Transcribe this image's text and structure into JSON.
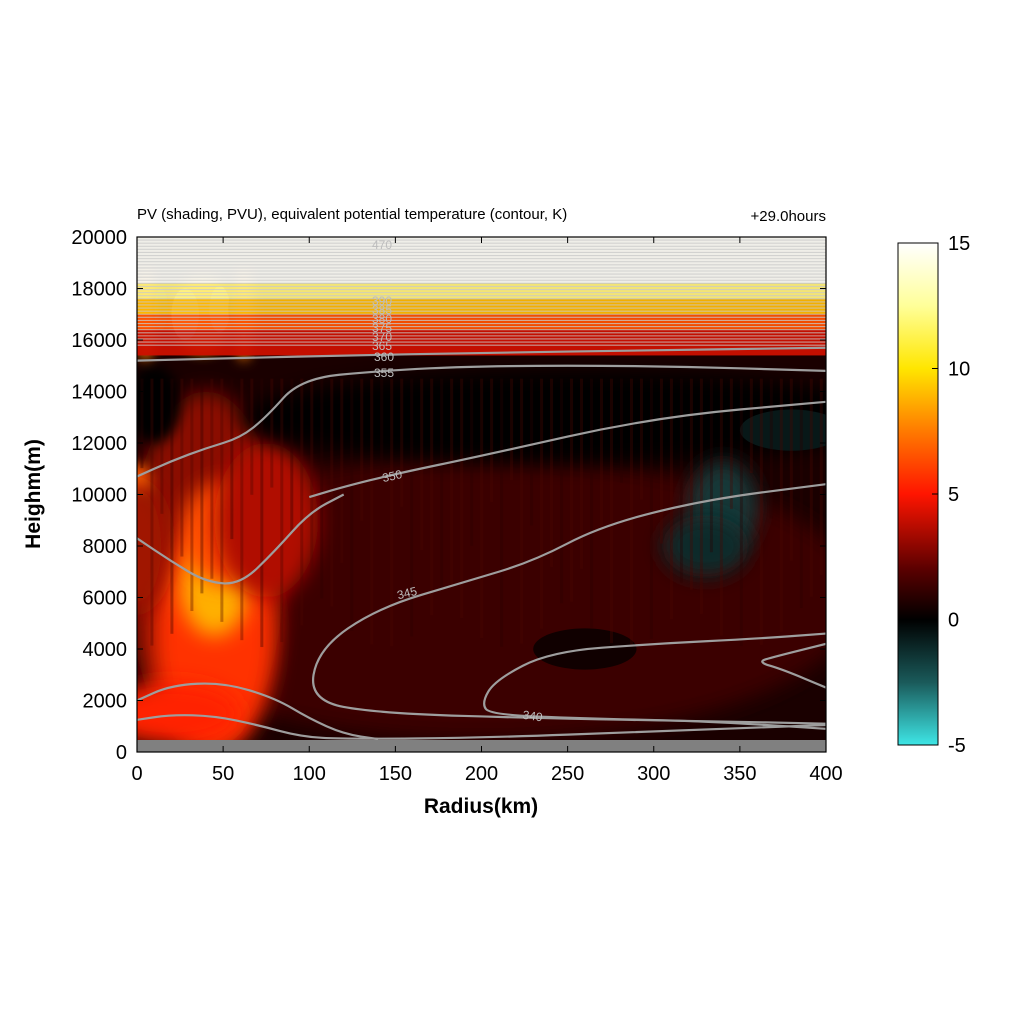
{
  "chart_data": {
    "type": "heatmap",
    "title": "PV (shading, PVU), equivalent potential temperature (contour, K)",
    "time_label": "+29.0hours",
    "xlabel": "Radius(km)",
    "ylabel": "Heighm(m)",
    "xlim": [
      0,
      400
    ],
    "ylim": [
      0,
      20000
    ],
    "x_ticks": [
      "0",
      "50",
      "100",
      "150",
      "200",
      "250",
      "300",
      "350",
      "400"
    ],
    "y_ticks": [
      "0",
      "2000",
      "4000",
      "6000",
      "8000",
      "10000",
      "12000",
      "14000",
      "16000",
      "18000",
      "20000"
    ],
    "colorbar": {
      "range": [
        -5,
        15
      ],
      "ticks": [
        "15",
        "10",
        "5",
        "0",
        "-5"
      ],
      "colors": [
        {
          "value": -5,
          "color": "#3ee6e6"
        },
        {
          "value": -2.5,
          "color": "#1a5a5a"
        },
        {
          "value": 0,
          "color": "#000000"
        },
        {
          "value": 2,
          "color": "#5a0000"
        },
        {
          "value": 5,
          "color": "#ff1500"
        },
        {
          "value": 7.5,
          "color": "#ff7a00"
        },
        {
          "value": 10,
          "color": "#ffe600"
        },
        {
          "value": 12.5,
          "color": "#ffff99"
        },
        {
          "value": 15,
          "color": "#ffffff"
        }
      ]
    },
    "contour_labels": [
      "340",
      "345",
      "350",
      "355",
      "360",
      "365",
      "370",
      "375",
      "380",
      "385",
      "390",
      "470"
    ],
    "contours": [
      {
        "level": 340,
        "points": [
          [
            0,
            1250
          ],
          [
            20,
            1450
          ],
          [
            45,
            1400
          ],
          [
            70,
            1050
          ],
          [
            95,
            600
          ],
          [
            120,
            500
          ],
          [
            200,
            550
          ],
          [
            300,
            800
          ],
          [
            400,
            1050
          ]
        ]
      },
      {
        "level": 340,
        "points": [
          [
            0,
            2000
          ],
          [
            20,
            2600
          ],
          [
            50,
            2700
          ],
          [
            80,
            2100
          ],
          [
            100,
            1300
          ],
          [
            120,
            700
          ],
          [
            140,
            500
          ]
        ]
      },
      {
        "level": 340,
        "points": [
          [
            400,
            900
          ],
          [
            330,
            1200
          ],
          [
            260,
            1300
          ],
          [
            205,
            1450
          ],
          [
            200,
            1900
          ],
          [
            208,
            2800
          ],
          [
            240,
            3900
          ],
          [
            300,
            4200
          ],
          [
            360,
            4400
          ],
          [
            400,
            4600
          ]
        ]
      },
      {
        "level": 340,
        "points": [
          [
            400,
            2500
          ],
          [
            375,
            3200
          ],
          [
            360,
            3500
          ],
          [
            370,
            3700
          ],
          [
            400,
            4200
          ]
        ]
      },
      {
        "level": 345,
        "points": [
          [
            0,
            8300
          ],
          [
            20,
            7400
          ],
          [
            40,
            6600
          ],
          [
            60,
            6500
          ],
          [
            80,
            7800
          ],
          [
            100,
            9300
          ],
          [
            120,
            10000
          ]
        ]
      },
      {
        "level": 345,
        "points": [
          [
            400,
            1100
          ],
          [
            330,
            1200
          ],
          [
            240,
            1300
          ],
          [
            140,
            1500
          ],
          [
            100,
            2000
          ],
          [
            105,
            4000
          ],
          [
            140,
            5600
          ],
          [
            190,
            6600
          ],
          [
            230,
            7400
          ],
          [
            270,
            8800
          ],
          [
            330,
            9800
          ],
          [
            400,
            10400
          ]
        ]
      },
      {
        "level": 350,
        "points": [
          [
            0,
            10700
          ],
          [
            20,
            11300
          ],
          [
            40,
            11800
          ],
          [
            60,
            12200
          ],
          [
            75,
            13000
          ],
          [
            95,
            14500
          ],
          [
            140,
            14800
          ],
          [
            200,
            15000
          ],
          [
            300,
            15000
          ],
          [
            400,
            14800
          ]
        ]
      },
      {
        "level": 350,
        "points": [
          [
            400,
            13600
          ],
          [
            300,
            13000
          ],
          [
            200,
            11500
          ],
          [
            150,
            10800
          ],
          [
            120,
            10300
          ],
          [
            100,
            9900
          ]
        ]
      },
      {
        "level": 355,
        "points": [
          [
            0,
            15200
          ],
          [
            60,
            15300
          ],
          [
            120,
            15400
          ],
          [
            200,
            15500
          ],
          [
            300,
            15600
          ],
          [
            400,
            15700
          ]
        ]
      }
    ]
  }
}
